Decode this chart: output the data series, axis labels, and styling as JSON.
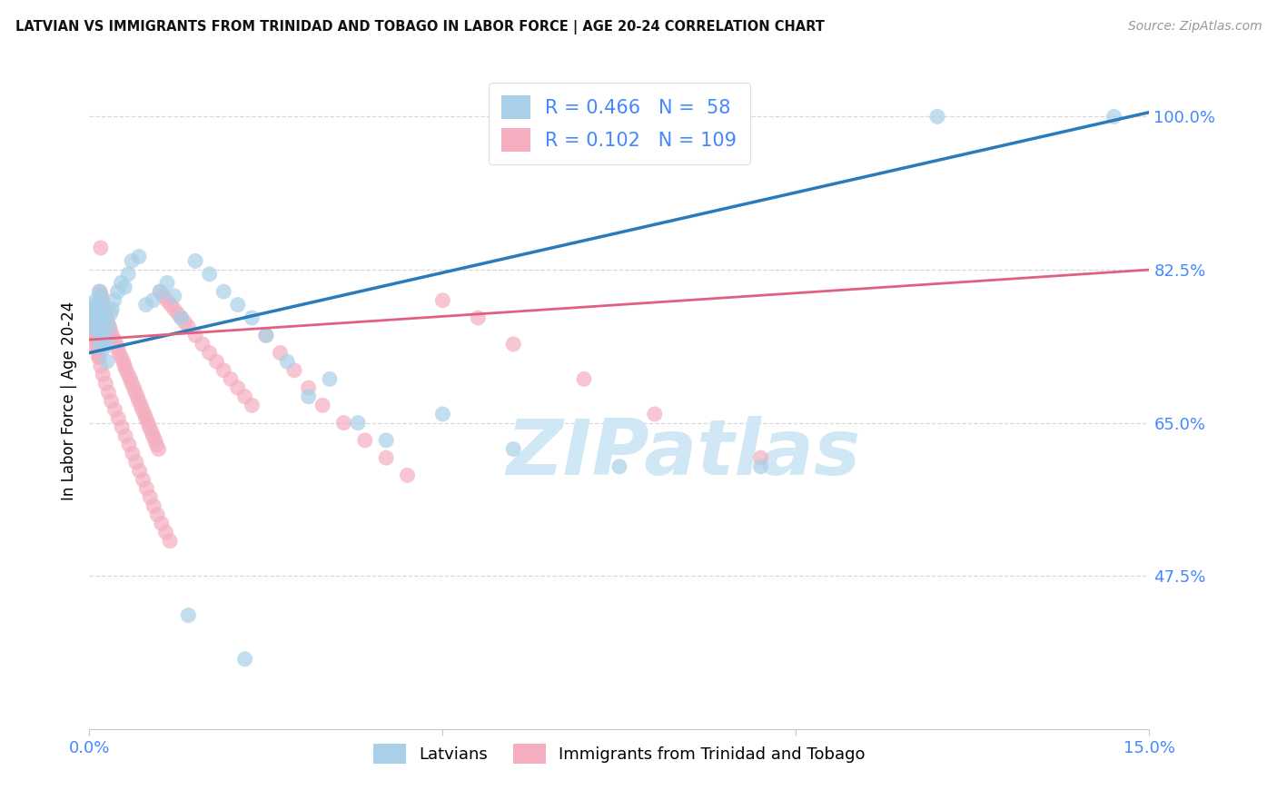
{
  "title": "LATVIAN VS IMMIGRANTS FROM TRINIDAD AND TOBAGO IN LABOR FORCE | AGE 20-24 CORRELATION CHART",
  "source": "Source: ZipAtlas.com",
  "ylabel": "In Labor Force | Age 20-24",
  "xlim": [
    0.0,
    15.0
  ],
  "ylim": [
    30.0,
    105.0
  ],
  "ytick_positions": [
    47.5,
    65.0,
    82.5,
    100.0
  ],
  "ytick_labels": [
    "47.5%",
    "65.0%",
    "82.5%",
    "100.0%"
  ],
  "xtick_positions": [
    0.0,
    5.0,
    10.0,
    15.0
  ],
  "xtick_labels": [
    "0.0%",
    "",
    "",
    "15.0%"
  ],
  "R_blue": 0.466,
  "N_blue": 58,
  "R_pink": 0.102,
  "N_pink": 109,
  "blue_scatter_color": "#a8d0e8",
  "pink_scatter_color": "#f4aec0",
  "blue_line_color": "#2b7bba",
  "pink_line_color": "#e06080",
  "watermark_color": "#d0e8f5",
  "tick_color": "#4488ff",
  "legend_latvians": "Latvians",
  "legend_immigrants": "Immigrants from Trinidad and Tobago",
  "blue_line_x0": 0.0,
  "blue_line_y0": 73.0,
  "blue_line_x1": 15.0,
  "blue_line_y1": 100.5,
  "pink_line_x0": 0.0,
  "pink_line_y0": 74.5,
  "pink_line_x1": 15.0,
  "pink_line_y1": 82.5,
  "blue_x": [
    0.05,
    0.07,
    0.08,
    0.09,
    0.1,
    0.11,
    0.12,
    0.13,
    0.14,
    0.15,
    0.16,
    0.17,
    0.18,
    0.19,
    0.2,
    0.22,
    0.25,
    0.28,
    0.3,
    0.32,
    0.35,
    0.4,
    0.45,
    0.5,
    0.55,
    0.6,
    0.7,
    0.8,
    0.9,
    1.0,
    1.1,
    1.2,
    1.3,
    1.5,
    1.7,
    1.9,
    2.1,
    2.3,
    2.5,
    2.8,
    3.1,
    3.4,
    3.8,
    4.2,
    5.0,
    6.0,
    7.5,
    9.5,
    12.0,
    14.5,
    0.06,
    0.09,
    0.11,
    0.15,
    0.2,
    0.25,
    1.4,
    2.2
  ],
  "blue_y": [
    77.5,
    78.0,
    78.5,
    79.0,
    77.0,
    76.5,
    76.0,
    75.5,
    80.0,
    79.5,
    78.5,
    77.5,
    78.0,
    77.0,
    76.5,
    75.0,
    74.0,
    76.0,
    77.5,
    78.0,
    79.0,
    80.0,
    81.0,
    80.5,
    82.0,
    83.5,
    84.0,
    78.5,
    79.0,
    80.0,
    81.0,
    79.5,
    77.0,
    83.5,
    82.0,
    80.0,
    78.5,
    77.0,
    75.0,
    72.0,
    68.0,
    70.0,
    65.0,
    63.0,
    66.0,
    62.0,
    60.0,
    60.0,
    100.0,
    100.0,
    76.0,
    77.0,
    75.5,
    74.0,
    73.5,
    72.0,
    43.0,
    38.0
  ],
  "pink_x": [
    0.03,
    0.04,
    0.05,
    0.06,
    0.07,
    0.08,
    0.09,
    0.1,
    0.11,
    0.12,
    0.13,
    0.14,
    0.15,
    0.16,
    0.17,
    0.18,
    0.19,
    0.2,
    0.22,
    0.24,
    0.26,
    0.28,
    0.3,
    0.32,
    0.35,
    0.38,
    0.4,
    0.42,
    0.45,
    0.48,
    0.5,
    0.52,
    0.55,
    0.58,
    0.6,
    0.63,
    0.65,
    0.68,
    0.7,
    0.73,
    0.75,
    0.78,
    0.8,
    0.83,
    0.85,
    0.88,
    0.9,
    0.93,
    0.95,
    0.98,
    1.0,
    1.05,
    1.1,
    1.15,
    1.2,
    1.25,
    1.3,
    1.35,
    1.4,
    1.5,
    1.6,
    1.7,
    1.8,
    1.9,
    2.0,
    2.1,
    2.2,
    2.3,
    2.5,
    2.7,
    2.9,
    3.1,
    3.3,
    3.6,
    3.9,
    4.2,
    4.5,
    5.0,
    5.5,
    6.0,
    7.0,
    8.0,
    9.5,
    0.04,
    0.06,
    0.08,
    0.1,
    0.13,
    0.16,
    0.19,
    0.23,
    0.27,
    0.31,
    0.36,
    0.41,
    0.46,
    0.51,
    0.56,
    0.61,
    0.66,
    0.71,
    0.76,
    0.81,
    0.86,
    0.91,
    0.96,
    1.02,
    1.08,
    1.14
  ],
  "pink_y": [
    77.0,
    77.5,
    78.0,
    76.5,
    76.0,
    75.5,
    75.0,
    74.5,
    74.0,
    73.5,
    73.0,
    72.5,
    80.0,
    85.0,
    79.5,
    79.0,
    78.5,
    78.0,
    77.5,
    77.0,
    76.5,
    76.0,
    75.5,
    75.0,
    74.5,
    74.0,
    73.5,
    73.0,
    72.5,
    72.0,
    71.5,
    71.0,
    70.5,
    70.0,
    69.5,
    69.0,
    68.5,
    68.0,
    67.5,
    67.0,
    66.5,
    66.0,
    65.5,
    65.0,
    64.5,
    64.0,
    63.5,
    63.0,
    62.5,
    62.0,
    80.0,
    79.5,
    79.0,
    78.5,
    78.0,
    77.5,
    77.0,
    76.5,
    76.0,
    75.0,
    74.0,
    73.0,
    72.0,
    71.0,
    70.0,
    69.0,
    68.0,
    67.0,
    75.0,
    73.0,
    71.0,
    69.0,
    67.0,
    65.0,
    63.0,
    61.0,
    59.0,
    79.0,
    77.0,
    74.0,
    70.0,
    66.0,
    61.0,
    76.5,
    75.5,
    74.5,
    73.5,
    72.5,
    71.5,
    70.5,
    69.5,
    68.5,
    67.5,
    66.5,
    65.5,
    64.5,
    63.5,
    62.5,
    61.5,
    60.5,
    59.5,
    58.5,
    57.5,
    56.5,
    55.5,
    54.5,
    53.5,
    52.5,
    51.5
  ]
}
